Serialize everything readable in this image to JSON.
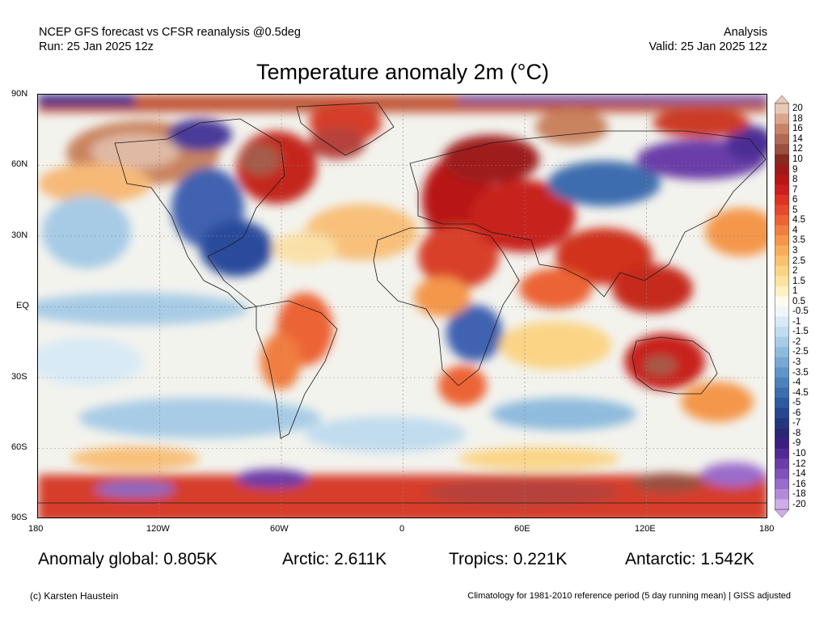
{
  "header": {
    "left_line1": "NCEP GFS forecast vs CFSR reanalysis @0.5deg",
    "left_line2": "Run: 25 Jan 2025 12z",
    "right_line1": "Analysis",
    "right_line2": "Valid: 25 Jan 2025 12z"
  },
  "title": "Temperature anomaly 2m (°C)",
  "axes": {
    "y_ticks": [
      "90N",
      "60N",
      "30N",
      "EQ",
      "30S",
      "60S",
      "90S"
    ],
    "x_ticks": [
      "180",
      "120W",
      "60W",
      "0",
      "60E",
      "120E",
      "180"
    ]
  },
  "colorbar": {
    "labels": [
      "20",
      "18",
      "16",
      "14",
      "12",
      "10",
      "9",
      "8",
      "7",
      "6",
      "5",
      "4.5",
      "4",
      "3.5",
      "3",
      "2.5",
      "2",
      "1.5",
      "1",
      "0.5",
      "-0.5",
      "-1",
      "-1.5",
      "-2",
      "-2.5",
      "-3",
      "-3.5",
      "-4",
      "-4.5",
      "-5",
      "-6",
      "-7",
      "-8",
      "-9",
      "-10",
      "-12",
      "-14",
      "-16",
      "-18",
      "-20"
    ],
    "colors": [
      "#e8c8b8",
      "#d9a58c",
      "#c98468",
      "#b06a55",
      "#9a5040",
      "#872a1e",
      "#9e1a1a",
      "#b81616",
      "#cc1e1e",
      "#dd3322",
      "#e64a2c",
      "#ec6434",
      "#f07e40",
      "#f4974c",
      "#f7ae5c",
      "#f9c26e",
      "#fbd486",
      "#fde3a0",
      "#fef0c2",
      "#fefaf0",
      "#eef6fb",
      "#d8eaf5",
      "#c1dcee",
      "#a8cce6",
      "#8fbbdd",
      "#77a9d3",
      "#6096c7",
      "#4b82bb",
      "#3c6daf",
      "#2f59a0",
      "#26478f",
      "#233680",
      "#2a2773",
      "#3b1f80",
      "#512a94",
      "#6a3ea8",
      "#8152ba",
      "#9a6ccb",
      "#b38bd9",
      "#cdaee8"
    ]
  },
  "stats": {
    "global": "Anomaly global: 0.805K",
    "arctic": "Arctic: 2.611K",
    "tropics": "Tropics: 0.221K",
    "antarctic": "Antarctic: 1.542K"
  },
  "footer": {
    "left": "(c) Karsten Haustein",
    "right": "Climatology for 1981-2010 reference period (5 day running mean) | GISS adjusted"
  }
}
